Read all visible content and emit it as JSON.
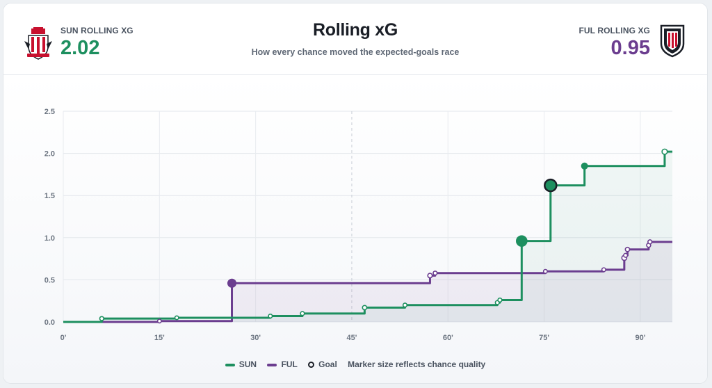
{
  "header": {
    "title": "Rolling xG",
    "subtitle": "How every chance moved the expected-goals race"
  },
  "home": {
    "label": "SUN ROLLING XG",
    "value": "2.02",
    "color": "#1d8f5f",
    "crest_icon": "sunderland-crest-icon"
  },
  "away": {
    "label": "FUL ROLLING XG",
    "value": "0.95",
    "color": "#6b3d8f",
    "crest_icon": "fulham-crest-icon"
  },
  "legend": {
    "sun": "SUN",
    "ful": "FUL",
    "goal": "Goal",
    "note": "Marker size reflects chance quality"
  },
  "chart_data": {
    "type": "line",
    "step": true,
    "xlim": [
      0,
      95
    ],
    "ylim": [
      0,
      2.5
    ],
    "x_ticks": [
      {
        "value": 0,
        "label": "0'"
      },
      {
        "value": 15,
        "label": "15'"
      },
      {
        "value": 30,
        "label": "30'"
      },
      {
        "value": 45,
        "label": "45'"
      },
      {
        "value": 60,
        "label": "60'"
      },
      {
        "value": 75,
        "label": "75'"
      },
      {
        "value": 90,
        "label": "90'"
      }
    ],
    "y_ticks": [
      {
        "value": 0,
        "label": "0.0"
      },
      {
        "value": 0.5,
        "label": "0.5"
      },
      {
        "value": 1.0,
        "label": "1.0"
      },
      {
        "value": 1.5,
        "label": "1.5"
      },
      {
        "value": 2.0,
        "label": "2.0"
      },
      {
        "value": 2.5,
        "label": "2.5"
      }
    ],
    "halftime_line": 45,
    "grid": true,
    "series": [
      {
        "name": "SUN",
        "color": "#1d8f5f",
        "shots": [
          {
            "minute": 6,
            "cum": 0.04,
            "goal": false
          },
          {
            "minute": 17.7,
            "cum": 0.05,
            "goal": false
          },
          {
            "minute": 32.3,
            "cum": 0.07,
            "goal": false
          },
          {
            "minute": 37.3,
            "cum": 0.1,
            "goal": false
          },
          {
            "minute": 47,
            "cum": 0.17,
            "goal": false
          },
          {
            "minute": 53.3,
            "cum": 0.2,
            "goal": false
          },
          {
            "minute": 67.7,
            "cum": 0.23,
            "goal": false
          },
          {
            "minute": 68.1,
            "cum": 0.26,
            "goal": false
          },
          {
            "minute": 71.5,
            "cum": 0.96,
            "goal": false
          },
          {
            "minute": 76,
            "cum": 1.62,
            "goal": true
          },
          {
            "minute": 81.3,
            "cum": 1.85,
            "goal": false
          },
          {
            "minute": 93.8,
            "cum": 2.02,
            "goal": false
          }
        ]
      },
      {
        "name": "FUL",
        "color": "#6b3d8f",
        "shots": [
          {
            "minute": 15,
            "cum": 0.01,
            "goal": false
          },
          {
            "minute": 26.3,
            "cum": 0.46,
            "goal": false
          },
          {
            "minute": 57.2,
            "cum": 0.55,
            "goal": false
          },
          {
            "minute": 58,
            "cum": 0.58,
            "goal": false
          },
          {
            "minute": 75.2,
            "cum": 0.6,
            "goal": false
          },
          {
            "minute": 84.3,
            "cum": 0.62,
            "goal": false
          },
          {
            "minute": 87.5,
            "cum": 0.76,
            "goal": false
          },
          {
            "minute": 87.7,
            "cum": 0.79,
            "goal": false
          },
          {
            "minute": 88.0,
            "cum": 0.86,
            "goal": false
          },
          {
            "minute": 91.3,
            "cum": 0.91,
            "goal": false
          },
          {
            "minute": 91.5,
            "cum": 0.95,
            "goal": false
          }
        ]
      }
    ]
  }
}
